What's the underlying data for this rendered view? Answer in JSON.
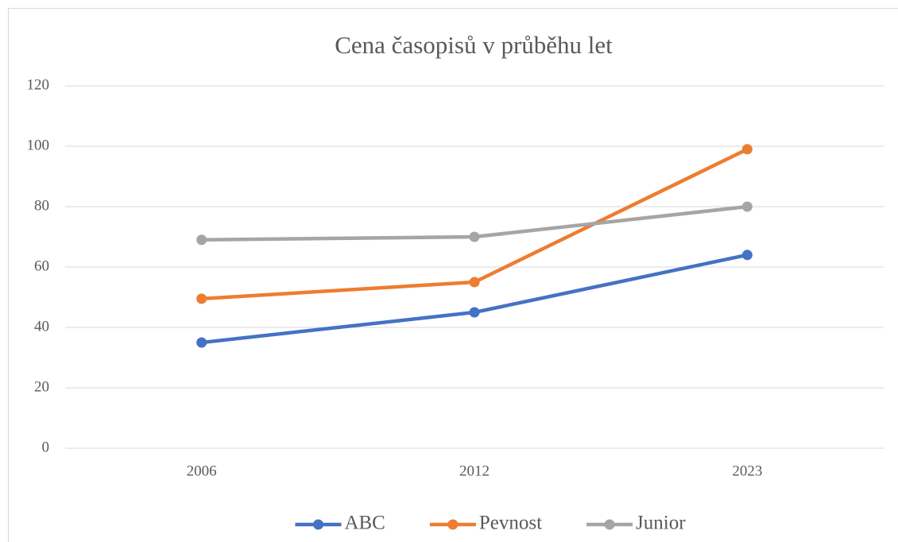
{
  "chart_data": {
    "type": "line",
    "title": "Cena časopisů v průběhu let",
    "categories": [
      "2006",
      "2012",
      "2023"
    ],
    "series": [
      {
        "name": "ABC",
        "color": "#4472c4",
        "values": [
          35,
          45,
          64
        ]
      },
      {
        "name": "Pevnost",
        "color": "#ed7d31",
        "values": [
          49.5,
          55,
          99
        ]
      },
      {
        "name": "Junior",
        "color": "#a5a5a5",
        "values": [
          69,
          70,
          80
        ]
      }
    ],
    "ylim": [
      0,
      120
    ],
    "yticks": [
      0,
      20,
      40,
      60,
      80,
      100,
      120
    ],
    "grid": true,
    "legend": "bottom"
  }
}
